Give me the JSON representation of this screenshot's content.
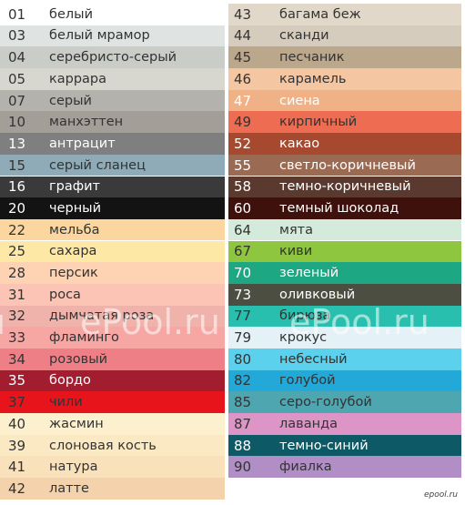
{
  "left": [
    {
      "num": "01",
      "name": "белый",
      "bg": "#ffffff",
      "fg": "#333333"
    },
    {
      "num": "03",
      "name": "белый мрамор",
      "bg": "#dfe3e1",
      "fg": "#333333"
    },
    {
      "num": "04",
      "name": "серебристо-серый",
      "bg": "#c9ccc7",
      "fg": "#333333"
    },
    {
      "num": "05",
      "name": "каррара",
      "bg": "#d8d7cf",
      "fg": "#333333"
    },
    {
      "num": "07",
      "name": "серый",
      "bg": "#b4b2ac",
      "fg": "#333333"
    },
    {
      "num": "10",
      "name": "манхэттен",
      "bg": "#a39e98",
      "fg": "#333333"
    },
    {
      "num": "13",
      "name": "антрацит",
      "bg": "#7f7f7f",
      "fg": "#ffffff"
    },
    {
      "num": "15",
      "name": "серый сланец",
      "bg": "#8eabb7",
      "fg": "#333333"
    },
    {
      "num": "16",
      "name": "графит",
      "bg": "#3a3a3a",
      "fg": "#ffffff"
    },
    {
      "num": "20",
      "name": "черный",
      "bg": "#131313",
      "fg": "#ffffff"
    },
    {
      "num": "22",
      "name": "мельба",
      "bg": "#fbd69e",
      "fg": "#333333"
    },
    {
      "num": "25",
      "name": "сахара",
      "bg": "#fde8a6",
      "fg": "#333333"
    },
    {
      "num": "28",
      "name": "персик",
      "bg": "#fdd3b3",
      "fg": "#333333"
    },
    {
      "num": "31",
      "name": "роса",
      "bg": "#fbc4b5",
      "fg": "#333333"
    },
    {
      "num": "32",
      "name": "дымчатая роза",
      "bg": "#f0b3ab",
      "fg": "#333333"
    },
    {
      "num": "33",
      "name": "фламинго",
      "bg": "#f6a6a3",
      "fg": "#333333"
    },
    {
      "num": "34",
      "name": "розовый",
      "bg": "#ef7f86",
      "fg": "#333333"
    },
    {
      "num": "35",
      "name": "бордо",
      "bg": "#a21d30",
      "fg": "#ffffff"
    },
    {
      "num": "37",
      "name": "чили",
      "bg": "#e8141c",
      "fg": "#333333"
    },
    {
      "num": "40",
      "name": "жасмин",
      "bg": "#fdf0cf",
      "fg": "#333333"
    },
    {
      "num": "39",
      "name": "слоновая кость",
      "bg": "#fbe9c3",
      "fg": "#333333"
    },
    {
      "num": "41",
      "name": "натура",
      "bg": "#f8e1bb",
      "fg": "#333333"
    },
    {
      "num": "42",
      "name": "латте",
      "bg": "#f3d2ac",
      "fg": "#333333"
    }
  ],
  "right": [
    {
      "num": "43",
      "name": "багама беж",
      "bg": "#e2d8c9",
      "fg": "#333333"
    },
    {
      "num": "44",
      "name": "сканди",
      "bg": "#d6ccbd",
      "fg": "#333333"
    },
    {
      "num": "45",
      "name": "песчаник",
      "bg": "#bba78c",
      "fg": "#333333"
    },
    {
      "num": "46",
      "name": "карамель",
      "bg": "#f4c6a2",
      "fg": "#333333"
    },
    {
      "num": "47",
      "name": "сиена",
      "bg": "#f1b187",
      "fg": "#ffffff"
    },
    {
      "num": "49",
      "name": "кирпичный",
      "bg": "#ee6c52",
      "fg": "#333333"
    },
    {
      "num": "52",
      "name": "какао",
      "bg": "#a7492f",
      "fg": "#ffffff"
    },
    {
      "num": "55",
      "name": "светло-коричневый",
      "bg": "#9b6a53",
      "fg": "#ffffff"
    },
    {
      "num": "58",
      "name": "темно-коричневый",
      "bg": "#5a3a2e",
      "fg": "#ffffff"
    },
    {
      "num": "60",
      "name": "темный шоколад",
      "bg": "#3f110c",
      "fg": "#ffffff"
    },
    {
      "num": "64",
      "name": "мята",
      "bg": "#d4ebdb",
      "fg": "#333333"
    },
    {
      "num": "67",
      "name": "киви",
      "bg": "#8ec63f",
      "fg": "#333333"
    },
    {
      "num": "70",
      "name": "зеленый",
      "bg": "#1ea783",
      "fg": "#ffffff"
    },
    {
      "num": "73",
      "name": "оливковый",
      "bg": "#4b4e41",
      "fg": "#ffffff"
    },
    {
      "num": "77",
      "name": "бирюза",
      "bg": "#28bfae",
      "fg": "#333333"
    },
    {
      "num": "79",
      "name": "крокус",
      "bg": "#e4f1f6",
      "fg": "#333333"
    },
    {
      "num": "80",
      "name": "небесный",
      "bg": "#5cd1ee",
      "fg": "#333333"
    },
    {
      "num": "82",
      "name": "голубой",
      "bg": "#23a9d8",
      "fg": "#333333"
    },
    {
      "num": "85",
      "name": "серо-голубой",
      "bg": "#4ea6b1",
      "fg": "#333333"
    },
    {
      "num": "87",
      "name": "лаванда",
      "bg": "#dc95c6",
      "fg": "#333333"
    },
    {
      "num": "88",
      "name": "темно-синий",
      "bg": "#0d5a66",
      "fg": "#ffffff"
    },
    {
      "num": "90",
      "name": "фиалка",
      "bg": "#b28ec6",
      "fg": "#333333"
    }
  ],
  "watermark": "ePool.ru",
  "logo": "epool.ru"
}
